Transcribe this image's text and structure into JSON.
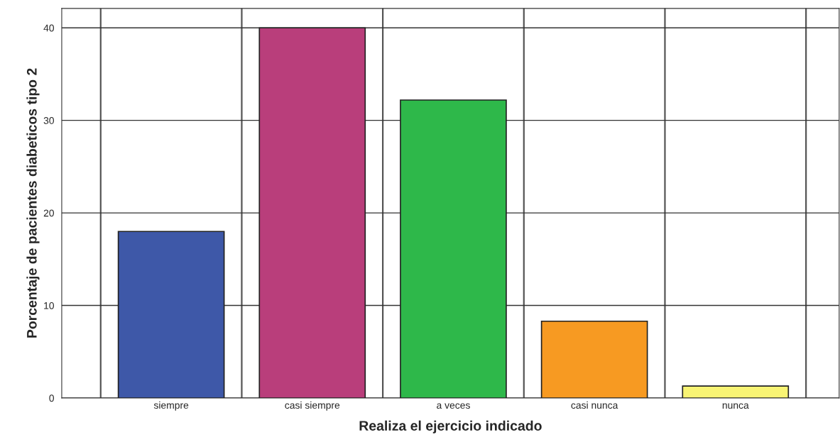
{
  "chart_data": {
    "type": "bar",
    "xlabel": "Realiza el ejercicio indicado",
    "ylabel": "Porcentaje de pacientes diabeticos tipo 2",
    "categories": [
      "siempre",
      "casi siempre",
      "a veces",
      "casi nunca",
      "nunca"
    ],
    "values": [
      18.0,
      40.0,
      32.2,
      8.3,
      1.3
    ],
    "colors": [
      "#3e58a8",
      "#b93e7b",
      "#2eb84a",
      "#f79a22",
      "#f8f474"
    ],
    "ylim": [
      0,
      42.1
    ],
    "yticks": [
      0,
      10,
      20,
      30,
      40
    ],
    "grid": true
  }
}
